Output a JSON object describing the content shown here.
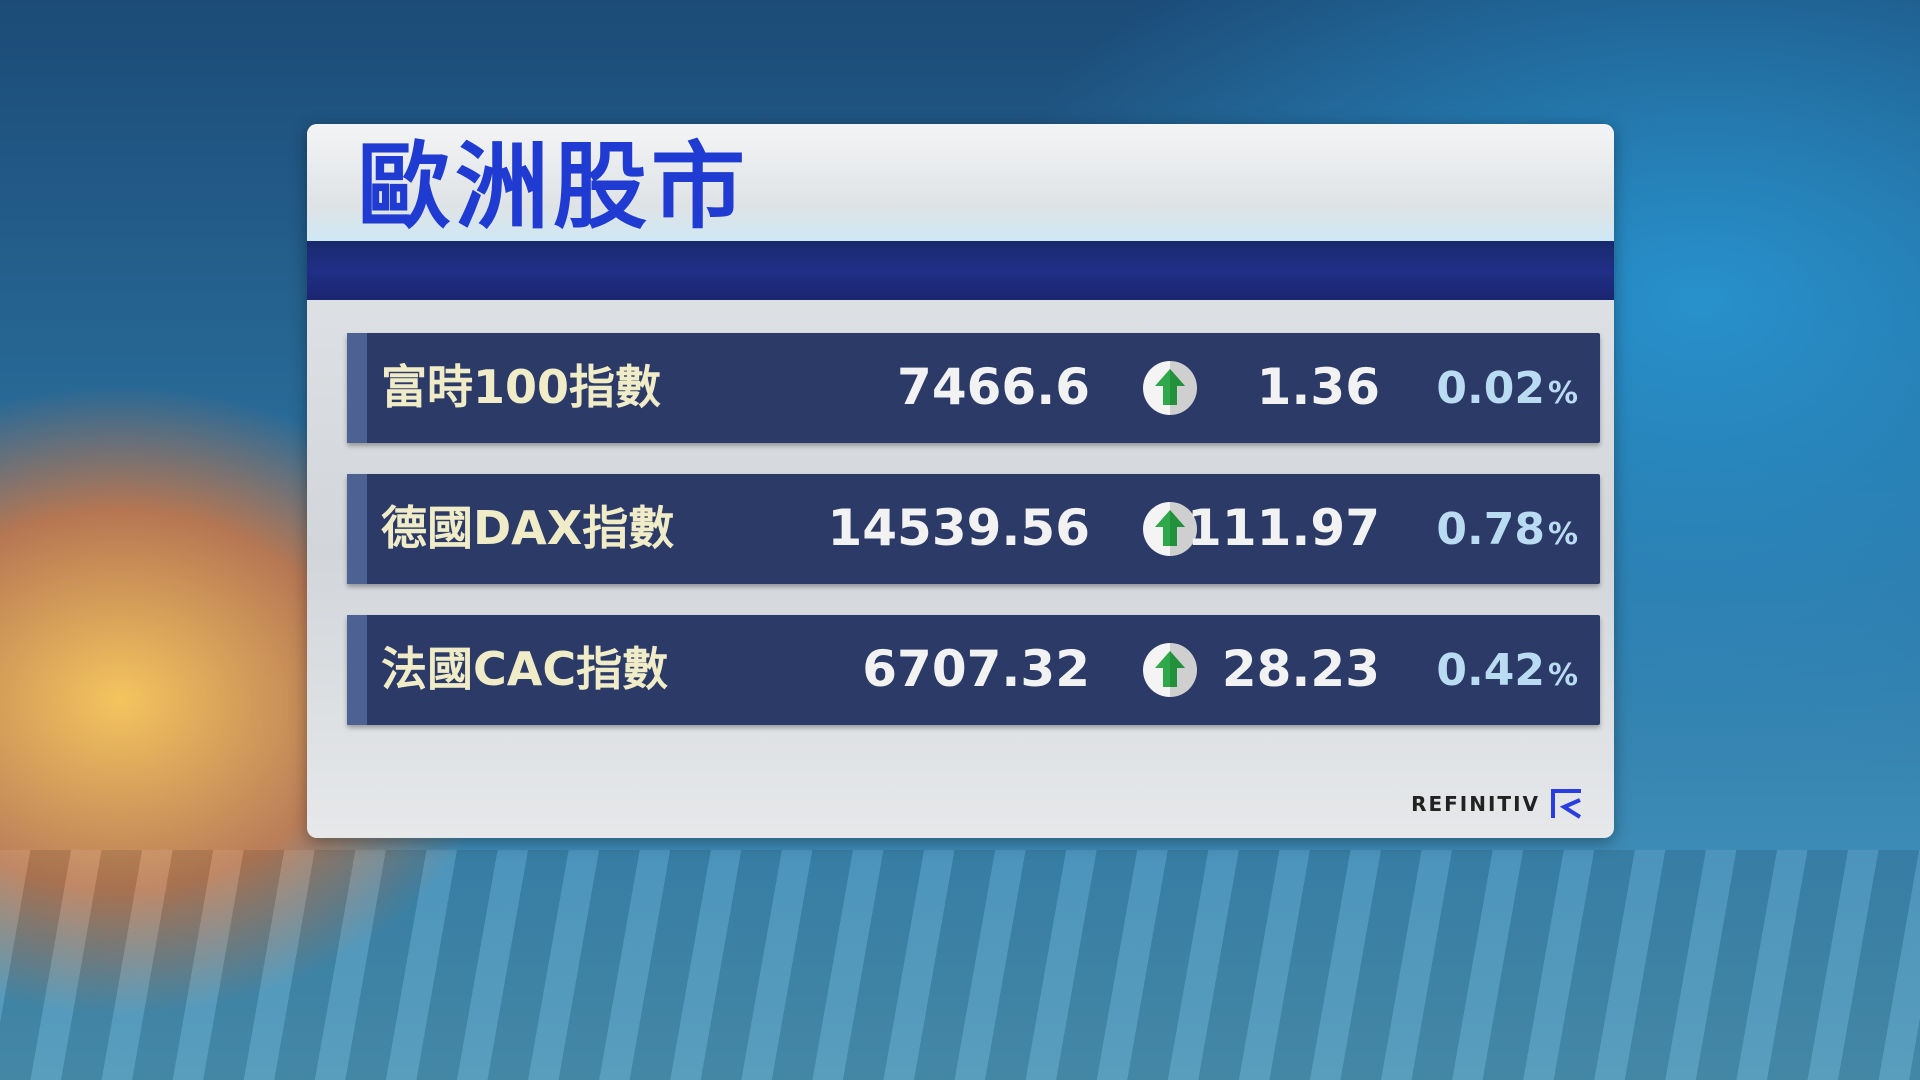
{
  "title": "歐洲股市",
  "indices": [
    {
      "name": "富時100指數",
      "value": "7466.6",
      "direction": "up",
      "change": "1.36",
      "percent": "0.02",
      "percent_sign": "%"
    },
    {
      "name": "德國DAX指數",
      "value": "14539.56",
      "direction": "up",
      "change": "111.97",
      "percent": "0.78",
      "percent_sign": "%"
    },
    {
      "name": "法國CAC指數",
      "value": "6707.32",
      "direction": "up",
      "change": "28.23",
      "percent": "0.42",
      "percent_sign": "%"
    }
  ],
  "source_logo": "REFINITIV",
  "colors": {
    "title": "#1f3bd1",
    "row_bg": "#2b3a67",
    "up_arrow": "#2ea84a",
    "percent": "#b9dcf2"
  }
}
